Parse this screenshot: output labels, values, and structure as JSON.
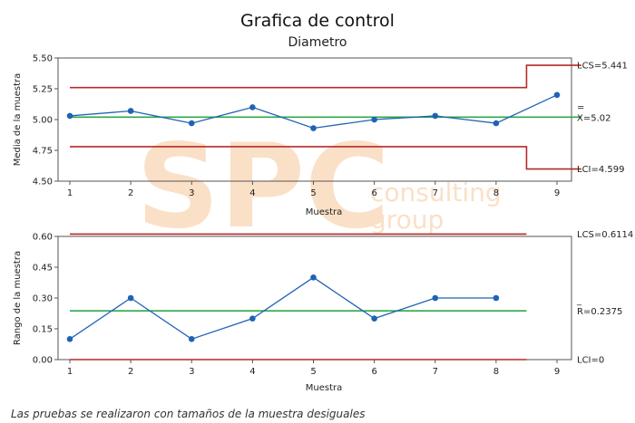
{
  "title": "Grafica de control",
  "subtitle": "Diametro",
  "footnote": "Las pruebas se realizaron con tamaños de la muestra desiguales",
  "watermark": {
    "big": "SPC",
    "line1": "consulting",
    "line2": "group",
    "color": "#f7c89a"
  },
  "colors": {
    "series": "#1f63b5",
    "center": "#2ea84a",
    "limits": "#b52a2a",
    "frame": "#555555"
  },
  "chart_data": [
    {
      "type": "line",
      "xlabel": "Muestra",
      "ylabel": "Media de la muestra",
      "x": [
        1,
        2,
        3,
        4,
        5,
        6,
        7,
        8,
        9
      ],
      "xticks": [
        "1",
        "2",
        "3",
        "4",
        "5",
        "6",
        "7",
        "8",
        "9"
      ],
      "values": [
        5.03,
        5.07,
        4.97,
        5.1,
        4.93,
        5.0,
        5.03,
        4.97,
        5.2
      ],
      "ylim": [
        4.5,
        5.5
      ],
      "yticks": [
        "4.50",
        "4.75",
        "5.00",
        "5.25",
        "5.50"
      ],
      "center": 5.02,
      "ucl_steps": [
        {
          "from": 1,
          "to": 8.5,
          "value": 5.26
        },
        {
          "from": 8.5,
          "to": 9.4,
          "value": 5.441
        }
      ],
      "lcl_steps": [
        {
          "from": 1,
          "to": 8.5,
          "value": 4.78
        },
        {
          "from": 8.5,
          "to": 9.4,
          "value": 4.599
        }
      ],
      "labels": {
        "ucl": "LCS=5.441",
        "center_bar": "=",
        "center": "X=5.02",
        "lcl": "LCI=4.599"
      }
    },
    {
      "type": "line",
      "xlabel": "Muestra",
      "ylabel": "Rango de la muestra",
      "x": [
        1,
        2,
        3,
        4,
        5,
        6,
        7,
        8
      ],
      "xticks": [
        "1",
        "2",
        "3",
        "4",
        "5",
        "6",
        "7",
        "8",
        "9"
      ],
      "values": [
        0.1,
        0.3,
        0.1,
        0.2,
        0.4,
        0.2,
        0.3,
        0.3
      ],
      "ylim": [
        0.0,
        0.6
      ],
      "yticks": [
        "0.00",
        "0.15",
        "0.30",
        "0.45",
        "0.60"
      ],
      "center": 0.2375,
      "ucl_steps": [
        {
          "from": 1,
          "to": 8.5,
          "value": 0.6114
        }
      ],
      "lcl_steps": [
        {
          "from": 1,
          "to": 8.5,
          "value": 0
        }
      ],
      "labels": {
        "ucl": "LCS=0.6114",
        "center_bar": "_",
        "center": "R=0.2375",
        "lcl": "LCI=0"
      }
    }
  ]
}
